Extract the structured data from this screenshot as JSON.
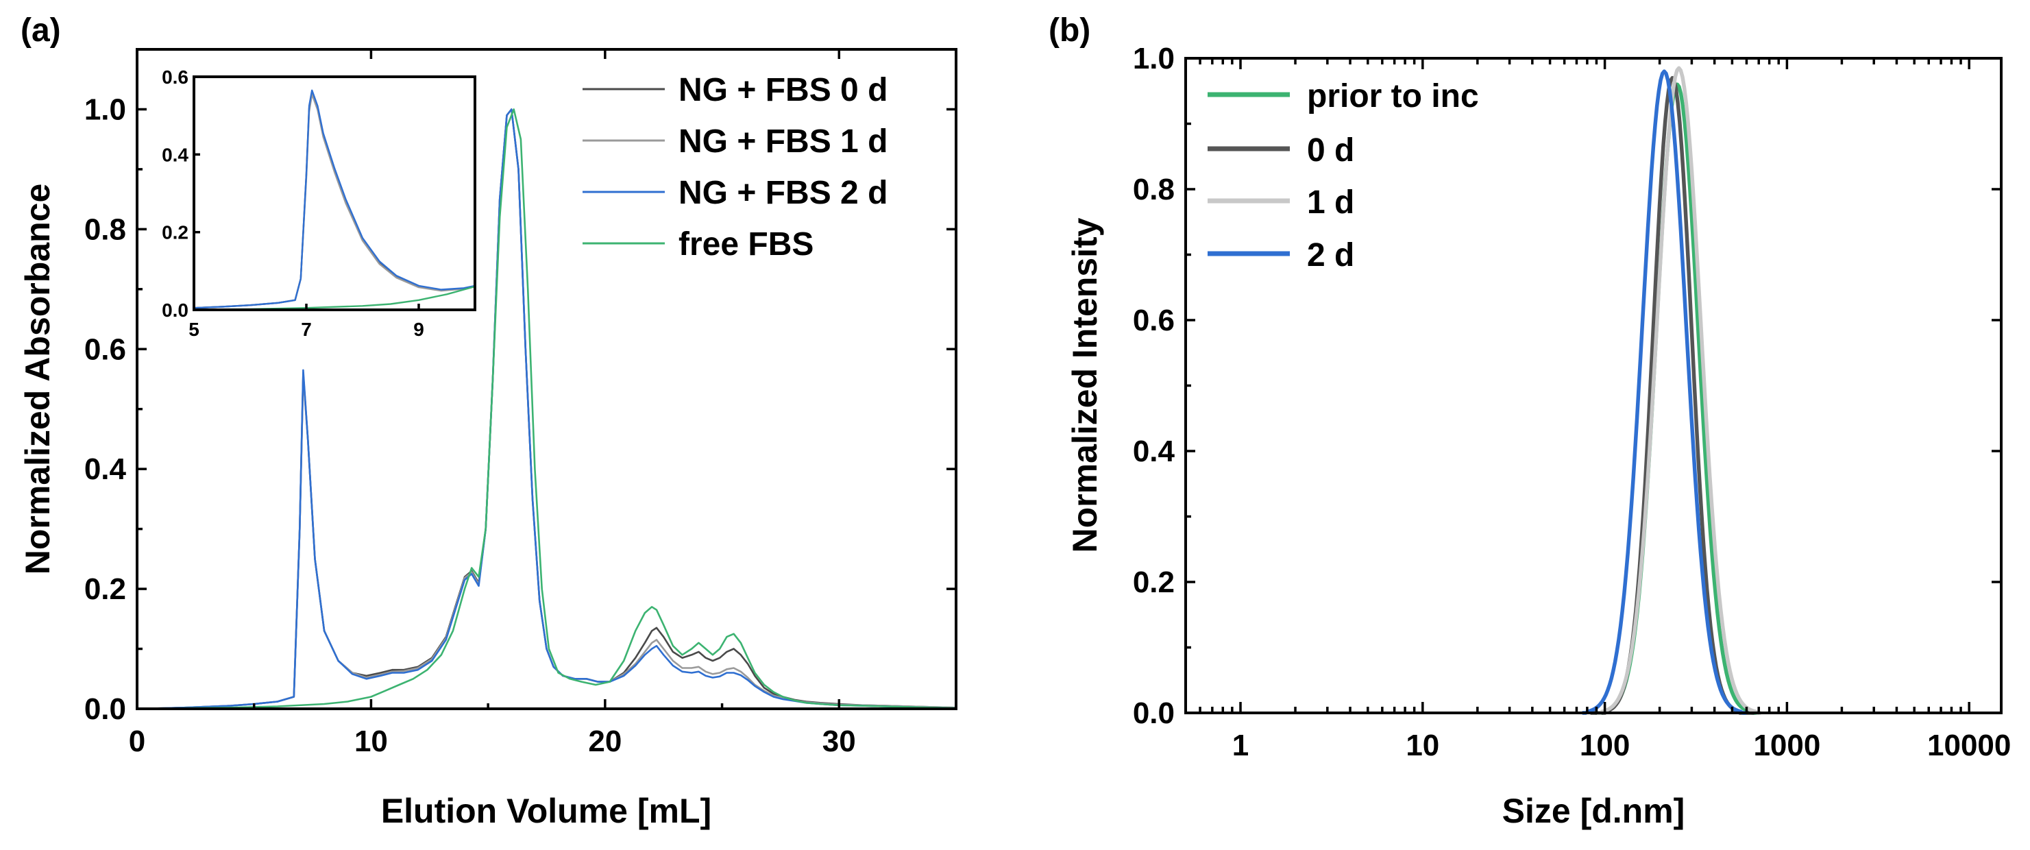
{
  "chart_data": [
    {
      "panel": "(a)",
      "type": "line",
      "title": "",
      "xlabel": "Elution Volume [mL]",
      "ylabel": "Normalized Absorbance",
      "xlim": [
        0,
        35
      ],
      "ylim": [
        0,
        1.1
      ],
      "xticks": [
        "0",
        "10",
        "20",
        "30"
      ],
      "yticks": [
        "0.0",
        "0.2",
        "0.4",
        "0.6",
        "0.8",
        "1.0"
      ],
      "legend_position": "top-right",
      "series": [
        {
          "name": "NG + FBS 0 d",
          "color": "#4a4a4a",
          "x": [
            0,
            2,
            4,
            5,
            6,
            6.7,
            6.95,
            7.1,
            7.3,
            7.6,
            8.0,
            8.6,
            9.2,
            9.8,
            10.4,
            10.9,
            11.4,
            12.0,
            12.6,
            13.2,
            13.6,
            14.0,
            14.3,
            14.6,
            14.9,
            15.2,
            15.5,
            15.8,
            16.0,
            16.3,
            16.6,
            16.9,
            17.2,
            17.5,
            17.8,
            18.2,
            18.7,
            19.2,
            19.7,
            20.2,
            20.8,
            21.3,
            21.7,
            22.0,
            22.2,
            22.5,
            22.9,
            23.3,
            23.7,
            24.0,
            24.3,
            24.6,
            24.9,
            25.2,
            25.5,
            25.8,
            26.1,
            26.4,
            26.8,
            27.2,
            27.6,
            28.1,
            28.6,
            29.2,
            30,
            31,
            32,
            33,
            34,
            35
          ],
          "y": [
            0.0,
            0.002,
            0.005,
            0.008,
            0.012,
            0.02,
            0.3,
            0.56,
            0.45,
            0.25,
            0.13,
            0.08,
            0.06,
            0.055,
            0.06,
            0.065,
            0.065,
            0.07,
            0.085,
            0.12,
            0.17,
            0.22,
            0.23,
            0.21,
            0.3,
            0.55,
            0.85,
            0.99,
            1.0,
            0.9,
            0.6,
            0.35,
            0.18,
            0.1,
            0.07,
            0.055,
            0.05,
            0.05,
            0.045,
            0.045,
            0.06,
            0.085,
            0.11,
            0.13,
            0.135,
            0.12,
            0.095,
            0.085,
            0.09,
            0.095,
            0.085,
            0.08,
            0.085,
            0.095,
            0.1,
            0.09,
            0.075,
            0.055,
            0.035,
            0.025,
            0.02,
            0.015,
            0.012,
            0.01,
            0.008,
            0.006,
            0.005,
            0.004,
            0.003,
            0.002
          ]
        },
        {
          "name": "NG + FBS 1 d",
          "color": "#9a9a9a",
          "x": [
            0,
            2,
            4,
            5,
            6,
            6.7,
            6.95,
            7.1,
            7.3,
            7.6,
            8.0,
            8.6,
            9.2,
            9.8,
            10.4,
            10.9,
            11.4,
            12.0,
            12.6,
            13.2,
            13.6,
            14.0,
            14.3,
            14.6,
            14.9,
            15.2,
            15.5,
            15.8,
            16.0,
            16.3,
            16.6,
            16.9,
            17.2,
            17.5,
            17.8,
            18.2,
            18.7,
            19.2,
            19.7,
            20.2,
            20.8,
            21.3,
            21.7,
            22.0,
            22.2,
            22.5,
            22.9,
            23.3,
            23.7,
            24.0,
            24.3,
            24.6,
            24.9,
            25.2,
            25.5,
            25.8,
            26.1,
            26.4,
            26.8,
            27.2,
            27.6,
            28.1,
            28.6,
            29.2,
            30,
            31,
            32,
            33,
            34,
            35
          ],
          "y": [
            0.0,
            0.002,
            0.005,
            0.008,
            0.012,
            0.02,
            0.3,
            0.555,
            0.45,
            0.25,
            0.13,
            0.08,
            0.06,
            0.052,
            0.057,
            0.062,
            0.063,
            0.068,
            0.083,
            0.118,
            0.168,
            0.218,
            0.228,
            0.208,
            0.3,
            0.55,
            0.85,
            0.99,
            1.0,
            0.9,
            0.6,
            0.35,
            0.18,
            0.1,
            0.07,
            0.055,
            0.05,
            0.05,
            0.045,
            0.045,
            0.058,
            0.075,
            0.095,
            0.11,
            0.115,
            0.1,
            0.08,
            0.068,
            0.068,
            0.07,
            0.062,
            0.058,
            0.06,
            0.066,
            0.068,
            0.062,
            0.052,
            0.04,
            0.03,
            0.022,
            0.018,
            0.014,
            0.011,
            0.009,
            0.007,
            0.006,
            0.005,
            0.004,
            0.003,
            0.002
          ]
        },
        {
          "name": "NG + FBS 2 d",
          "color": "#2f6fd1",
          "x": [
            0,
            2,
            4,
            5,
            6,
            6.7,
            6.95,
            7.1,
            7.3,
            7.6,
            8.0,
            8.6,
            9.2,
            9.8,
            10.4,
            10.9,
            11.4,
            12.0,
            12.6,
            13.2,
            13.6,
            14.0,
            14.3,
            14.6,
            14.9,
            15.2,
            15.5,
            15.8,
            16.0,
            16.3,
            16.6,
            16.9,
            17.2,
            17.5,
            17.8,
            18.2,
            18.7,
            19.2,
            19.7,
            20.2,
            20.8,
            21.3,
            21.7,
            22.0,
            22.2,
            22.5,
            22.9,
            23.3,
            23.7,
            24.0,
            24.3,
            24.6,
            24.9,
            25.2,
            25.5,
            25.8,
            26.1,
            26.4,
            26.8,
            27.2,
            27.6,
            28.1,
            28.6,
            29.2,
            30,
            31,
            32,
            33,
            34,
            35
          ],
          "y": [
            0.0,
            0.002,
            0.005,
            0.008,
            0.012,
            0.02,
            0.3,
            0.565,
            0.45,
            0.25,
            0.13,
            0.08,
            0.058,
            0.05,
            0.055,
            0.06,
            0.06,
            0.065,
            0.08,
            0.115,
            0.165,
            0.215,
            0.225,
            0.205,
            0.3,
            0.55,
            0.85,
            0.99,
            1.0,
            0.9,
            0.6,
            0.35,
            0.18,
            0.1,
            0.07,
            0.055,
            0.05,
            0.05,
            0.045,
            0.045,
            0.055,
            0.072,
            0.09,
            0.1,
            0.105,
            0.09,
            0.072,
            0.062,
            0.06,
            0.062,
            0.055,
            0.052,
            0.054,
            0.06,
            0.06,
            0.056,
            0.048,
            0.038,
            0.028,
            0.02,
            0.016,
            0.013,
            0.01,
            0.008,
            0.006,
            0.005,
            0.004,
            0.003,
            0.002,
            0.001
          ]
        },
        {
          "name": "free FBS",
          "color": "#3cb371",
          "x": [
            0,
            4,
            6,
            8,
            9,
            10,
            10.6,
            11.2,
            11.8,
            12.4,
            13.0,
            13.5,
            14.0,
            14.3,
            14.6,
            14.9,
            15.2,
            15.5,
            15.8,
            16.1,
            16.4,
            16.7,
            17.0,
            17.3,
            17.6,
            18.0,
            18.5,
            19.0,
            19.6,
            20.2,
            20.8,
            21.3,
            21.7,
            22.0,
            22.2,
            22.5,
            22.9,
            23.3,
            23.7,
            24.0,
            24.3,
            24.6,
            24.9,
            25.2,
            25.5,
            25.8,
            26.1,
            26.4,
            26.8,
            27.2,
            27.6,
            28.1,
            28.6,
            29.2,
            30,
            31,
            32,
            33,
            34,
            35
          ],
          "y": [
            0.0,
            0.002,
            0.004,
            0.008,
            0.012,
            0.02,
            0.03,
            0.04,
            0.05,
            0.065,
            0.09,
            0.13,
            0.2,
            0.235,
            0.22,
            0.3,
            0.55,
            0.82,
            0.97,
            1.0,
            0.95,
            0.7,
            0.4,
            0.2,
            0.1,
            0.06,
            0.05,
            0.045,
            0.04,
            0.045,
            0.08,
            0.13,
            0.16,
            0.17,
            0.165,
            0.14,
            0.105,
            0.09,
            0.1,
            0.11,
            0.1,
            0.09,
            0.1,
            0.12,
            0.125,
            0.11,
            0.085,
            0.06,
            0.04,
            0.028,
            0.02,
            0.014,
            0.01,
            0.008,
            0.006,
            0.005,
            0.004,
            0.003,
            0.002,
            0.001
          ]
        }
      ],
      "inset": {
        "type": "line",
        "xlim": [
          5,
          10
        ],
        "ylim": [
          0,
          0.6
        ],
        "xticks": [
          "5",
          "7",
          "9"
        ],
        "yticks": [
          "0.0",
          "0.2",
          "0.4",
          "0.6"
        ],
        "series": [
          {
            "name": "NG + FBS 0 d",
            "color": "#4a4a4a",
            "x": [
              5,
              5.5,
              6,
              6.5,
              6.8,
              6.9,
              7.0,
              7.05,
              7.1,
              7.2,
              7.3,
              7.5,
              7.7,
              8.0,
              8.3,
              8.6,
              9.0,
              9.4,
              9.8,
              10
            ],
            "y": [
              0.005,
              0.008,
              0.012,
              0.018,
              0.025,
              0.08,
              0.35,
              0.52,
              0.56,
              0.52,
              0.45,
              0.36,
              0.28,
              0.18,
              0.12,
              0.085,
              0.06,
              0.05,
              0.055,
              0.06
            ]
          },
          {
            "name": "NG + FBS 1 d",
            "color": "#9a9a9a",
            "x": [
              5,
              5.5,
              6,
              6.5,
              6.8,
              6.9,
              7.0,
              7.05,
              7.1,
              7.2,
              7.3,
              7.5,
              7.7,
              8.0,
              8.3,
              8.6,
              9.0,
              9.4,
              9.8,
              10
            ],
            "y": [
              0.005,
              0.008,
              0.012,
              0.018,
              0.025,
              0.08,
              0.34,
              0.51,
              0.555,
              0.515,
              0.445,
              0.355,
              0.275,
              0.178,
              0.118,
              0.083,
              0.058,
              0.049,
              0.054,
              0.06
            ]
          },
          {
            "name": "NG + FBS 2 d",
            "color": "#2f6fd1",
            "x": [
              5,
              5.5,
              6,
              6.5,
              6.8,
              6.9,
              7.0,
              7.05,
              7.1,
              7.2,
              7.3,
              7.5,
              7.7,
              8.0,
              8.3,
              8.6,
              9.0,
              9.4,
              9.8,
              10
            ],
            "y": [
              0.005,
              0.008,
              0.012,
              0.018,
              0.025,
              0.08,
              0.35,
              0.525,
              0.565,
              0.525,
              0.455,
              0.365,
              0.285,
              0.185,
              0.125,
              0.088,
              0.062,
              0.052,
              0.056,
              0.062
            ]
          },
          {
            "name": "free FBS",
            "color": "#3cb371",
            "x": [
              5,
              6,
              7,
              8,
              8.5,
              9,
              9.5,
              10
            ],
            "y": [
              0.001,
              0.002,
              0.005,
              0.01,
              0.015,
              0.025,
              0.04,
              0.06
            ]
          }
        ]
      }
    },
    {
      "panel": "(b)",
      "type": "line",
      "title": "",
      "xlabel": "Size [d.nm]",
      "ylabel": "Normalized Intensity",
      "xscale": "log",
      "xlim": [
        0.5,
        15000
      ],
      "ylim": [
        0,
        1.0
      ],
      "xticks": [
        "1",
        "10",
        "100",
        "1000",
        "10000"
      ],
      "yticks": [
        "0.0",
        "0.2",
        "0.4",
        "0.6",
        "0.8",
        "1.0"
      ],
      "legend_position": "top-left",
      "series": [
        {
          "name": "prior to inc",
          "color": "#3cb371",
          "peak_nm": 250,
          "peak_value": 0.96,
          "width_log10": 0.115
        },
        {
          "name": "0 d",
          "color": "#555555",
          "peak_nm": 235,
          "peak_value": 0.97,
          "width_log10": 0.105
        },
        {
          "name": "1 d",
          "color": "#c8c8c8",
          "peak_nm": 255,
          "peak_value": 0.985,
          "width_log10": 0.12
        },
        {
          "name": "2 d",
          "color": "#2f6fd1",
          "peak_nm": 212,
          "peak_value": 0.98,
          "width_log10": 0.12
        }
      ]
    }
  ]
}
